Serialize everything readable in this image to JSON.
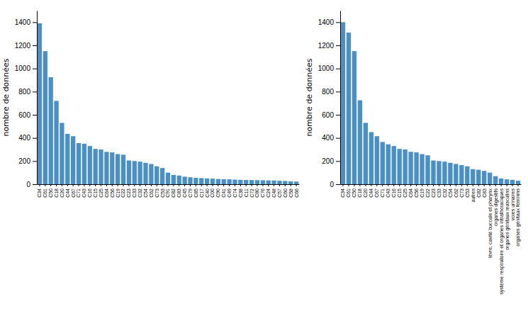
{
  "chart_data": [
    {
      "type": "bar",
      "ylabel": "nombre de données",
      "categories": [
        "C34",
        "C61",
        "C50",
        "C18",
        "C20",
        "C44",
        "C67",
        "C71",
        "C43",
        "C16",
        "C15",
        "C25",
        "C64",
        "C56",
        "C19",
        "C22",
        "C23",
        "C33",
        "C32",
        "C54",
        "C62",
        "C73",
        "C53",
        "C91",
        "C82",
        "C83",
        "C45",
        "C79",
        "C85",
        "C17",
        "C40",
        "C00",
        "C90",
        "C41",
        "C49",
        "C74",
        "C38",
        "C11",
        "C72",
        "C80",
        "C76",
        "C24",
        "C48",
        "C57",
        "C60",
        "C58",
        "C66"
      ],
      "values": [
        1390,
        1150,
        925,
        720,
        530,
        435,
        415,
        355,
        350,
        330,
        305,
        300,
        280,
        275,
        260,
        255,
        205,
        200,
        195,
        185,
        175,
        155,
        140,
        100,
        80,
        75,
        65,
        60,
        55,
        53,
        50,
        48,
        45,
        43,
        42,
        40,
        38,
        37,
        36,
        35,
        34,
        33,
        32,
        30,
        28,
        25,
        23
      ],
      "color": "#4a90c4",
      "ylim": [
        0,
        1500
      ],
      "yticks": [
        0,
        200,
        400,
        600,
        800,
        1000,
        1200,
        1400
      ]
    },
    {
      "type": "bar",
      "ylabel": "nombre de données",
      "categories": [
        "C34",
        "C61",
        "C50",
        "C18",
        "C20",
        "C44",
        "C67",
        "C71",
        "C43",
        "C16",
        "C15",
        "C25",
        "C64",
        "C56",
        "C19",
        "C22",
        "C23",
        "C33",
        "C32",
        "C54",
        "C62",
        "C73",
        "C53",
        "autres",
        "C82",
        "C83",
        "lèvre, cavité buccale et pharynx",
        "organes digestifs",
        "système respiratoire et organes intrathoraciques",
        "organes génitaux masculins",
        "voies urinaires",
        "organes génitaux féminins"
      ],
      "values": [
        1400,
        1310,
        1150,
        725,
        530,
        450,
        415,
        365,
        345,
        330,
        305,
        300,
        280,
        275,
        260,
        250,
        205,
        200,
        195,
        185,
        175,
        165,
        155,
        130,
        125,
        115,
        100,
        70,
        50,
        42,
        38,
        30
      ],
      "color": "#4a90c4",
      "ylim": [
        0,
        1500
      ],
      "yticks": [
        0,
        200,
        400,
        600,
        800,
        1000,
        1200,
        1400
      ]
    }
  ]
}
